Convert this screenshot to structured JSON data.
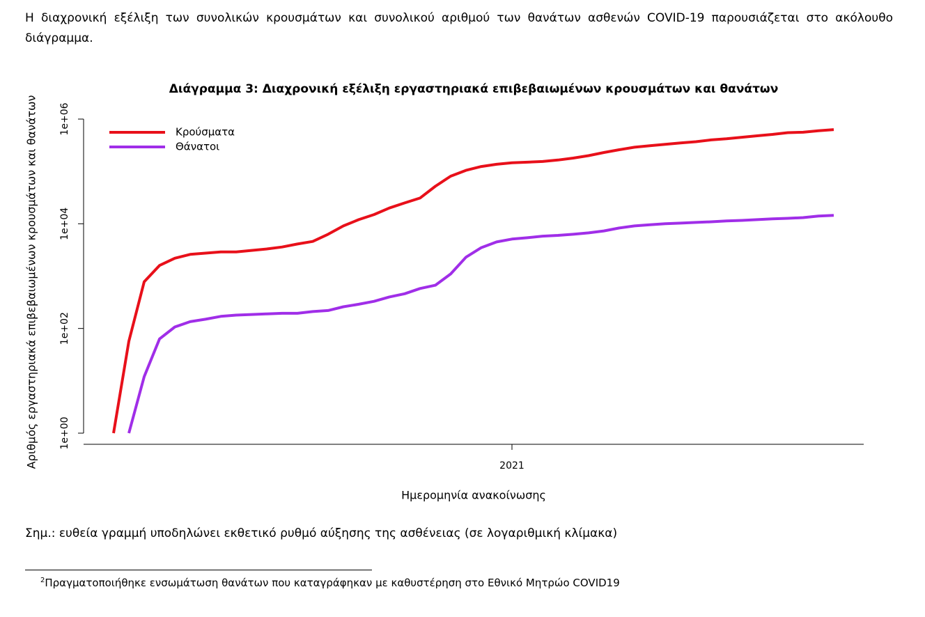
{
  "intro": "Η διαχρονική εξέλιξη των συνολικών κρουσμάτων και συνολικού αριθμού των θανάτων ασθενών COVID-19 παρουσιάζεται στο ακόλουθο διάγραμμα.",
  "chart_data": {
    "type": "line",
    "title": "Διάγραμμα 3: Διαχρονική εξέλιξη εργαστηριακά επιβεβαιωμένων κρουσμάτων και θανάτων",
    "x_label": "Ημερομηνία ανακοίνωσης",
    "y_label": "Αριθμός εργαστηριακά επιβεβαιωμένων κρουσμάτων και θανάτων",
    "log_y": true,
    "legend": "top-left",
    "categories": [
      null,
      null,
      null,
      null,
      null,
      null,
      null,
      null,
      null,
      null,
      null,
      null,
      null,
      null,
      null,
      null,
      null,
      null,
      null,
      null,
      null,
      null,
      null,
      null,
      null,
      null,
      "2021",
      null,
      null,
      null,
      null,
      null,
      null,
      null,
      null,
      null,
      null,
      null,
      null,
      null,
      null,
      null,
      null,
      null,
      null,
      null,
      null,
      null
    ],
    "series": [
      {
        "name": "Κρούσματα",
        "color": "#e8101a",
        "values": [
          1,
          57,
          780,
          1600,
          2200,
          2600,
          2750,
          2900,
          2900,
          3100,
          3300,
          3600,
          4100,
          4600,
          6300,
          9100,
          12000,
          15000,
          20000,
          25000,
          31000,
          52000,
          81000,
          105000,
          124000,
          137000,
          146000,
          150000,
          155000,
          165000,
          180000,
          200000,
          230000,
          260000,
          290000,
          310000,
          330000,
          350000,
          370000,
          400000,
          420000,
          450000,
          480000,
          510000,
          550000,
          560000,
          600000,
          630000
        ]
      },
      {
        "name": "Θάνατοι",
        "color": "#a02ee8",
        "values": [
          null,
          1,
          12,
          63,
          107,
          135,
          150,
          170,
          180,
          185,
          190,
          195,
          195,
          210,
          220,
          260,
          290,
          330,
          400,
          460,
          580,
          670,
          1100,
          2300,
          3500,
          4500,
          5100,
          5400,
          5800,
          6000,
          6300,
          6700,
          7300,
          8300,
          9100,
          9600,
          10000,
          10300,
          10600,
          10900,
          11300,
          11600,
          12000,
          12400,
          12700,
          13100,
          14000,
          14500
        ]
      }
    ],
    "ylim": [
      1,
      1000000
    ],
    "yticks": [
      {
        "value": 1,
        "label": "1e+00"
      },
      {
        "value": 100,
        "label": "1e+02"
      },
      {
        "value": 10000,
        "label": "1e+04"
      },
      {
        "value": 1000000,
        "label": "1e+06"
      }
    ]
  },
  "note": "Σημ.: ευθεία γραμμή υποδηλώνει εκθετικό ρυθμό αύξησης της ασθένειας (σε λογαριθμική κλίμακα)",
  "footnote": {
    "marker": "2",
    "text": "Πραγματοποιήθηκε ενσωμάτωση θανάτων που καταγράφηκαν με καθυστέρηση στο Εθνικό Μητρώο COVID19"
  }
}
